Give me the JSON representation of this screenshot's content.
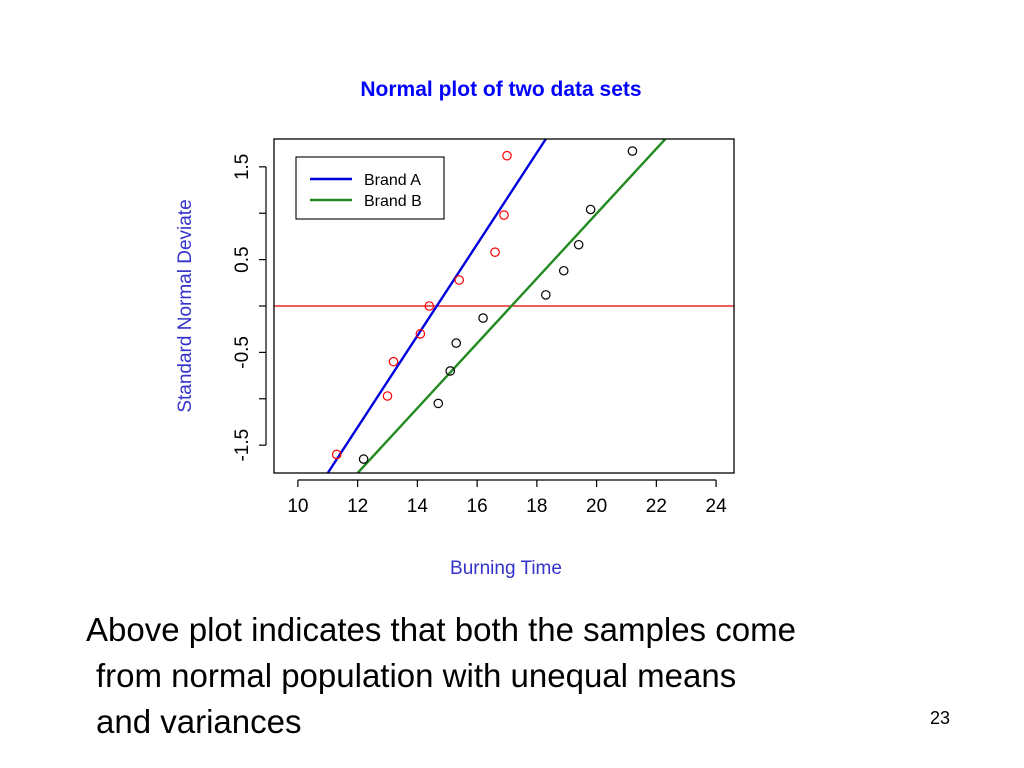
{
  "slide": {
    "caption_lines": [
      "Above plot indicates that both the samples come",
      "from normal population with unequal means",
      "and variances"
    ],
    "page_number": "23"
  },
  "chart_data": {
    "type": "scatter",
    "title": "Normal plot of two data sets",
    "xlabel": "Burning Time",
    "ylabel": "Standard Normal Deviate",
    "xlim": [
      9.2,
      24.6
    ],
    "ylim": [
      -1.8,
      1.8
    ],
    "x_ticks": [
      10,
      12,
      14,
      16,
      18,
      20,
      22,
      24
    ],
    "y_ticks": [
      -1.5,
      -0.5,
      0.5,
      1.5
    ],
    "y_minor_ticks": [
      -1.0,
      0.0,
      1.0
    ],
    "hline": {
      "y": 0,
      "color": "#e00000"
    },
    "legend": {
      "position": "top-left"
    },
    "colors": {
      "title": "#0000ff",
      "axis_label": "#3333cc",
      "brand_a_line": "#0000dd",
      "brand_b_line": "#228b22",
      "brand_a_points": "#ff0000",
      "brand_b_points": "#000000"
    },
    "series": [
      {
        "name": "Brand A",
        "points": [
          {
            "x": 11.3,
            "y": -1.6
          },
          {
            "x": 13.0,
            "y": -0.97
          },
          {
            "x": 13.2,
            "y": -0.6
          },
          {
            "x": 14.1,
            "y": -0.3
          },
          {
            "x": 14.4,
            "y": 0.0
          },
          {
            "x": 15.4,
            "y": 0.28
          },
          {
            "x": 16.6,
            "y": 0.58
          },
          {
            "x": 16.9,
            "y": 0.98
          },
          {
            "x": 17.0,
            "y": 1.62
          }
        ],
        "fit_line": [
          {
            "x": 11.0,
            "y": -1.8
          },
          {
            "x": 18.3,
            "y": 1.8
          }
        ]
      },
      {
        "name": "Brand B",
        "points": [
          {
            "x": 12.2,
            "y": -1.65
          },
          {
            "x": 14.7,
            "y": -1.05
          },
          {
            "x": 15.1,
            "y": -0.7
          },
          {
            "x": 15.3,
            "y": -0.4
          },
          {
            "x": 16.2,
            "y": -0.13
          },
          {
            "x": 18.3,
            "y": 0.12
          },
          {
            "x": 18.9,
            "y": 0.38
          },
          {
            "x": 19.4,
            "y": 0.66
          },
          {
            "x": 19.8,
            "y": 1.04
          },
          {
            "x": 21.2,
            "y": 1.67
          }
        ],
        "fit_line": [
          {
            "x": 12.0,
            "y": -1.8
          },
          {
            "x": 22.3,
            "y": 1.8
          }
        ]
      }
    ]
  }
}
